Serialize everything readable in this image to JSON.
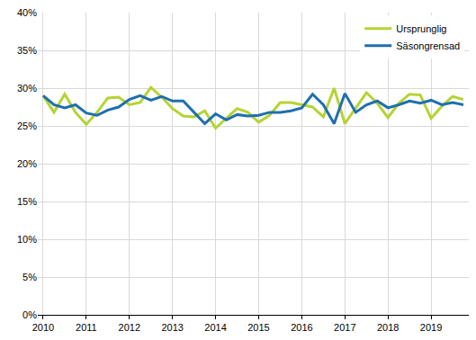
{
  "chart_data": {
    "type": "line",
    "categories": [
      "2010",
      null,
      null,
      null,
      "2011",
      null,
      null,
      null,
      "2012",
      null,
      null,
      null,
      "2013",
      null,
      null,
      null,
      "2014",
      null,
      null,
      null,
      "2015",
      null,
      null,
      null,
      "2016",
      null,
      null,
      null,
      "2017",
      null,
      null,
      null,
      "2018",
      null,
      null,
      null,
      "2019",
      null,
      null,
      null
    ],
    "series": [
      {
        "name": "Ursprunglig",
        "color": "#b5d334",
        "values": [
          29.0,
          26.8,
          29.2,
          26.8,
          25.2,
          26.8,
          28.7,
          28.8,
          27.8,
          28.1,
          30.1,
          28.8,
          27.3,
          26.3,
          26.2,
          27.0,
          24.7,
          26.0,
          27.3,
          26.8,
          25.5,
          26.4,
          28.1,
          28.1,
          27.8,
          27.5,
          26.2,
          30.0,
          25.3,
          27.3,
          29.4,
          28.0,
          26.1,
          28.0,
          29.2,
          29.1,
          26.0,
          27.6,
          28.9,
          28.5
        ]
      },
      {
        "name": "Säsongrensad",
        "color": "#1f6fb0",
        "values": [
          29.0,
          27.8,
          27.4,
          27.8,
          26.7,
          26.4,
          27.1,
          27.5,
          28.5,
          29.0,
          28.4,
          28.9,
          28.3,
          28.3,
          26.8,
          25.3,
          26.6,
          25.8,
          26.5,
          26.3,
          26.4,
          26.8,
          26.8,
          27.0,
          27.4,
          29.2,
          27.8,
          25.3,
          29.3,
          26.8,
          27.8,
          28.3,
          27.4,
          27.8,
          28.3,
          28.0,
          28.4,
          27.8,
          28.1,
          27.8
        ]
      }
    ],
    "ylim": [
      0,
      40
    ],
    "yticks": [
      {
        "value": 0,
        "label": "0%"
      },
      {
        "value": 5,
        "label": "5%"
      },
      {
        "value": 10,
        "label": "10%"
      },
      {
        "value": 15,
        "label": "15%"
      },
      {
        "value": 20,
        "label": "20%"
      },
      {
        "value": 25,
        "label": "25%"
      },
      {
        "value": 30,
        "label": "30%"
      },
      {
        "value": 35,
        "label": "35%"
      },
      {
        "value": 40,
        "label": "40%"
      }
    ],
    "grid": true,
    "legend": "top right"
  }
}
